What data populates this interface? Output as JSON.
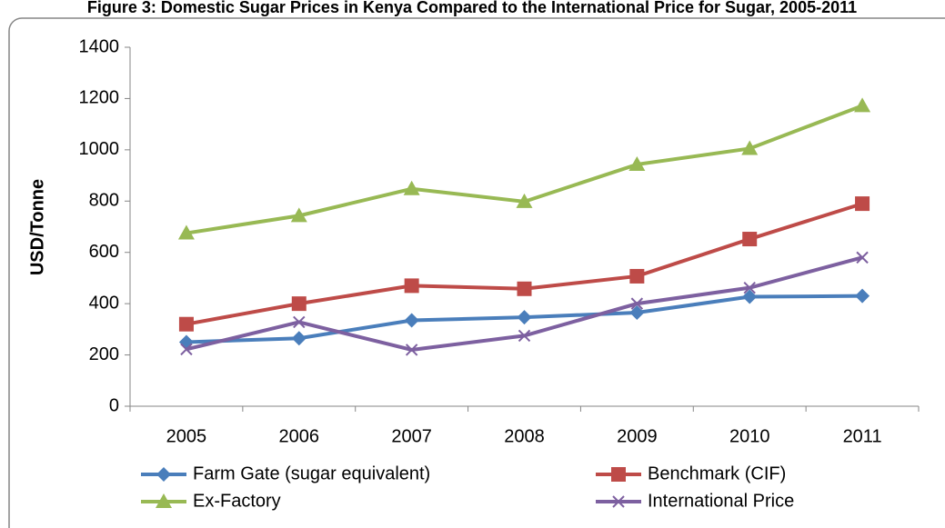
{
  "chart_data": {
    "type": "line",
    "title": "Figure 3: Domestic Sugar Prices in Kenya Compared to the International Price for Sugar, 2005-2011",
    "y_label": "USD/Tonne",
    "categories": [
      "2005",
      "2006",
      "2007",
      "2008",
      "2009",
      "2010",
      "2011"
    ],
    "series": [
      {
        "name": "Farm Gate (sugar equivalent)",
        "color": "#4a7ebb",
        "marker": "diamond",
        "values": [
          250,
          265,
          335,
          347,
          365,
          427,
          430
        ]
      },
      {
        "name": "Benchmark (CIF)",
        "color": "#be4b48",
        "marker": "square",
        "values": [
          320,
          400,
          470,
          458,
          507,
          652,
          790
        ]
      },
      {
        "name": "Ex-Factory",
        "color": "#98b954",
        "marker": "triangle",
        "values": [
          675,
          743,
          848,
          798,
          943,
          1005,
          1172
        ]
      },
      {
        "name": "International Price",
        "color": "#7d60a0",
        "marker": "x",
        "values": [
          222,
          328,
          220,
          275,
          400,
          462,
          580
        ]
      }
    ],
    "ylim": [
      0,
      1400
    ],
    "yticks": [
      0,
      200,
      400,
      600,
      800,
      1000,
      1200,
      1400
    ]
  }
}
